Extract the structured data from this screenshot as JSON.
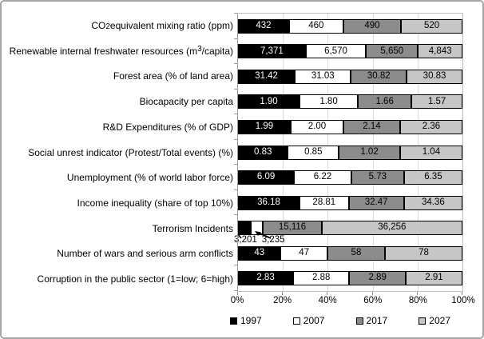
{
  "style": {
    "figure_border": "#a5a5a5",
    "plot_border": "#bdbdbd",
    "gridline_color": "#dcdcdc",
    "axis_color": "#9a9a9a",
    "text_color": "#000000"
  },
  "chart_data": {
    "type": "bar",
    "variant": "100-percent-stacked",
    "orientation": "horizontal",
    "title": "",
    "xlabel": "",
    "ylabel": "",
    "categories": [
      "CO~2~equivalent mixing ratio (ppm)",
      "Renewable internal freshwater resources (m^3^/capita)",
      "Forest area (% of land area)",
      "Biocapacity per capita",
      "R&D Expenditures (% of GDP)",
      "Social unrest indicator (Protest/Total events) (%)",
      "Unemployment  (% of world labor force)",
      "Income inequality (share of top 10%)",
      "Terrorism Incidents",
      "Number of wars and serious arm conflicts",
      "Corruption in the public sector (1=low; 6=high)"
    ],
    "series": [
      {
        "name": "1997",
        "color": "#000000",
        "label_color": "#ffffff",
        "values": [
          "432",
          "7,371",
          "31.42",
          "1.90",
          "1.99",
          "0.83",
          "6.09",
          "36.18",
          "3,201",
          "43",
          "2.83"
        ]
      },
      {
        "name": "2007",
        "color": "#ffffff",
        "label_color": "#000000",
        "values": [
          "460",
          "6,570",
          "31.03",
          "1.80",
          "2.00",
          "0.85",
          "6.22",
          "28.81",
          "3,235",
          "47",
          "2.88"
        ]
      },
      {
        "name": "2017",
        "color": "#8c8c8c",
        "label_color": "#000000",
        "values": [
          "490",
          "5,650",
          "30.82",
          "1.66",
          "2.14",
          "1.02",
          "5.73",
          "32.47",
          "15,116",
          "58",
          "2.89"
        ]
      },
      {
        "name": "2027",
        "color": "#c6c6c6",
        "label_color": "#000000",
        "values": [
          "520",
          "4,843",
          "30.83",
          "1.57",
          "2.36",
          "1.04",
          "6.35",
          "34.36",
          "36,256",
          "78",
          "2.91"
        ]
      }
    ],
    "x_axis": {
      "ticks": [
        "0%",
        "20%",
        "40%",
        "60%",
        "80%",
        "100%"
      ],
      "range_pct": [
        0,
        100
      ],
      "gridline_interval_pct": 20
    },
    "legend": {
      "position": "bottom",
      "entries": [
        "1997",
        "2007",
        "2017",
        "2027"
      ]
    },
    "callouts": [
      {
        "category_index": 8,
        "labels": [
          "3,201",
          "3,235"
        ],
        "reason": "segments too small for inline labels"
      }
    ],
    "min_inline_label_share_pct": 10
  }
}
